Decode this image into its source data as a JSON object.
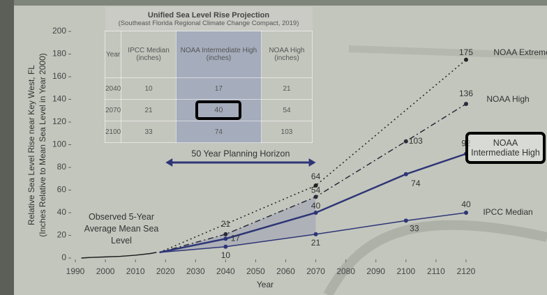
{
  "chart_data": {
    "type": "line",
    "x_label": "Year",
    "y_label": [
      "Relative Sea Level Rise near Key West, FL",
      "(Inches Relative to Mean Sea Level in Year 2000)"
    ],
    "xlim": [
      1990,
      2120
    ],
    "xticks": [
      1990,
      2000,
      2010,
      2020,
      2030,
      2040,
      2050,
      2060,
      2070,
      2080,
      2090,
      2100,
      2110,
      2120
    ],
    "ylim": [
      0,
      200
    ],
    "yticks": [
      0,
      20,
      40,
      60,
      80,
      100,
      120,
      140,
      160,
      180,
      200
    ],
    "series": [
      {
        "x": [
          1992,
          1995,
          2000,
          2005,
          2010,
          2015,
          2017
        ],
        "values": [
          0,
          0.5,
          1,
          1.5,
          2.5,
          4,
          5
        ],
        "color": "#1a1a1a",
        "style": "solid"
      },
      {
        "name": "NOAA Extreme",
        "x": [
          2018,
          2070,
          2120
        ],
        "values": [
          5,
          64,
          175
        ],
        "value_labels": [
          null,
          "64",
          "175"
        ],
        "color": "#222222",
        "style": "dotted"
      },
      {
        "name": "NOAA High",
        "x": [
          2018,
          2040,
          2070,
          2100,
          2120
        ],
        "values": [
          5,
          21,
          54,
          103,
          136
        ],
        "value_labels": [
          null,
          "21",
          "54",
          "103",
          "136"
        ],
        "color": "#2a2a3a",
        "style": "dashdot"
      },
      {
        "name": "NOAA Intermediate High",
        "x": [
          2018,
          2040,
          2070,
          2100,
          2120
        ],
        "values": [
          5,
          17,
          40,
          74,
          92
        ],
        "value_labels": [
          null,
          "17",
          "40",
          "74",
          "92"
        ],
        "color": "#2e3576",
        "style": "thick"
      },
      {
        "name": "IPCC Median",
        "x": [
          2018,
          2040,
          2070,
          2100,
          2120
        ],
        "values": [
          5,
          10,
          21,
          33,
          40
        ],
        "value_labels": [
          null,
          "10",
          "21",
          "33",
          "40"
        ],
        "color": "#2e3576",
        "style": "solid"
      }
    ],
    "observed_label": "Observed 5-Year Average Mean Sea Level",
    "horizon": {
      "label": "50 Year Planning Horizon",
      "x": [
        2020,
        2070
      ]
    }
  },
  "table": {
    "title": "Unified Sea Level Rise Projection",
    "subtitle": "(Southeast Florida Regional Climate Change Compact, 2019)",
    "columns": [
      "Year",
      "IPCC Median (inches)",
      "NOAA Intermediate High (inches)",
      "NOAA High (inches)"
    ],
    "rows": [
      [
        "2040",
        "10",
        "17",
        "21"
      ],
      [
        "2070",
        "21",
        "40",
        "54"
      ],
      [
        "2100",
        "33",
        "74",
        "103"
      ]
    ]
  }
}
